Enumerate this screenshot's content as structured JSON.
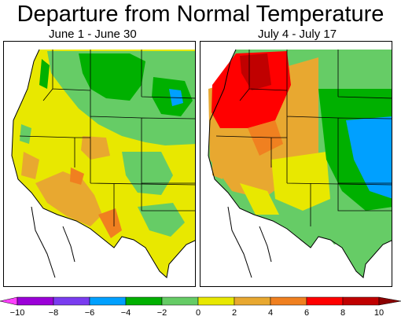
{
  "title": "Departure from Normal Temperature",
  "panels": [
    {
      "id": "left",
      "period": "June 1 - June 30"
    },
    {
      "id": "right",
      "period": "July 4 - July 17"
    }
  ],
  "legend": {
    "ticks": [
      "−10",
      "−8",
      "−6",
      "−4",
      "−2",
      "0",
      "2",
      "4",
      "6",
      "8",
      "10"
    ],
    "colors": [
      "#ff40ff",
      "#9b00d8",
      "#7a3cf0",
      "#00a0ff",
      "#00b000",
      "#66cc66",
      "#e8e800",
      "#e8a830",
      "#f08020",
      "#ff0000",
      "#c00000",
      "#8b0000"
    ]
  },
  "palette": {
    "green_dark": "#00b000",
    "green_light": "#66cc66",
    "yellow": "#e8e800",
    "orange_light": "#e8a830",
    "orange": "#f08020",
    "red": "#ff0000",
    "blue": "#00a0ff"
  }
}
